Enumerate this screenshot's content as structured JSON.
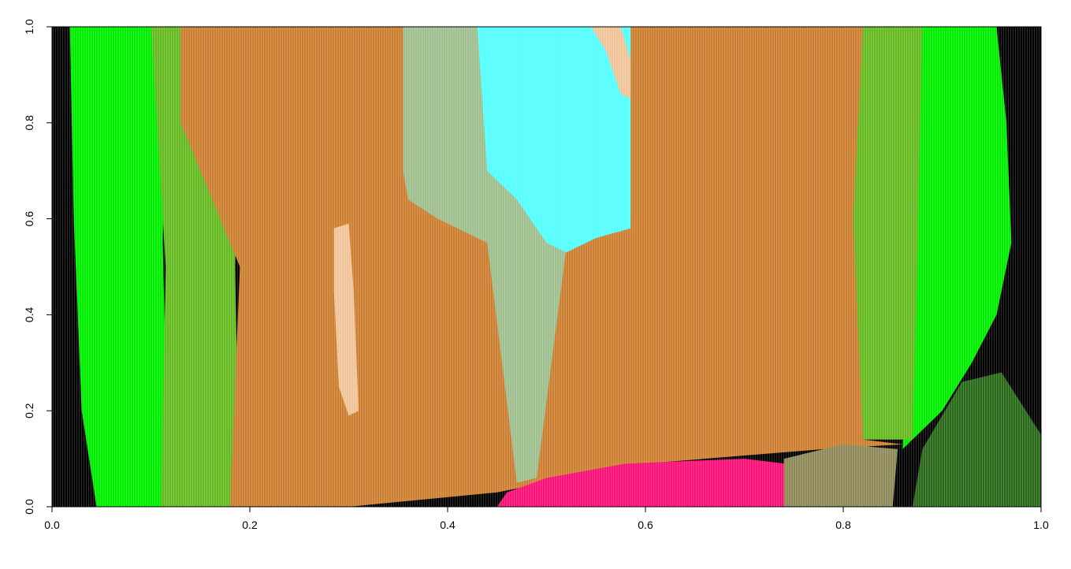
{
  "chart_data": {
    "type": "heatmap",
    "title": "",
    "xlabel": "",
    "ylabel": "",
    "xlim": [
      0.0,
      1.0
    ],
    "ylim": [
      0.0,
      1.0
    ],
    "x_ticks": [
      "0.0",
      "0.2",
      "0.4",
      "0.6",
      "0.8",
      "1.0"
    ],
    "y_ticks": [
      "0.0",
      "0.2",
      "0.4",
      "0.6",
      "0.8",
      "1.0"
    ],
    "grid": false,
    "legend": "none",
    "regions": [
      {
        "name": "background",
        "color": "#000000",
        "polygon": [
          [
            0,
            0
          ],
          [
            1,
            0
          ],
          [
            1,
            1
          ],
          [
            0,
            1
          ]
        ]
      },
      {
        "name": "bright-green-left",
        "color": "#00ee00",
        "polygon": [
          [
            0.018,
            1
          ],
          [
            0.115,
            1
          ],
          [
            0.112,
            0.55
          ],
          [
            0.118,
            0.0
          ],
          [
            0.045,
            0.0
          ],
          [
            0.03,
            0.2
          ],
          [
            0.022,
            0.6
          ]
        ]
      },
      {
        "name": "olive-green-left",
        "color": "#66bb22",
        "polygon": [
          [
            0.08,
            1
          ],
          [
            0.19,
            1
          ],
          [
            0.185,
            0.5
          ],
          [
            0.19,
            0.0
          ],
          [
            0.11,
            0.0
          ],
          [
            0.115,
            0.5
          ],
          [
            0.1,
            1
          ]
        ]
      },
      {
        "name": "bright-green-right",
        "color": "#00ee00",
        "polygon": [
          [
            0.87,
            1
          ],
          [
            0.955,
            1
          ],
          [
            0.965,
            0.8
          ],
          [
            0.97,
            0.55
          ],
          [
            0.955,
            0.4
          ],
          [
            0.93,
            0.3
          ],
          [
            0.9,
            0.2
          ],
          [
            0.86,
            0.12
          ],
          [
            0.87,
            0.5
          ]
        ]
      },
      {
        "name": "olive-green-right",
        "color": "#66bb22",
        "polygon": [
          [
            0.79,
            1
          ],
          [
            0.88,
            1
          ],
          [
            0.875,
            0.5
          ],
          [
            0.87,
            0.14
          ],
          [
            0.8,
            0.14
          ],
          [
            0.81,
            0.5
          ]
        ]
      },
      {
        "name": "orange-main",
        "color": "#cd7f32",
        "polygon": [
          [
            0.13,
            1
          ],
          [
            0.82,
            1
          ],
          [
            0.81,
            0.6
          ],
          [
            0.82,
            0.14
          ],
          [
            0.86,
            0.13
          ],
          [
            0.78,
            0.12
          ],
          [
            0.6,
            0.09
          ],
          [
            0.45,
            0.03
          ],
          [
            0.3,
            0.0
          ],
          [
            0.18,
            0.0
          ],
          [
            0.19,
            0.5
          ],
          [
            0.13,
            0.8
          ]
        ]
      },
      {
        "name": "sage-stripes",
        "color": "#9fbf8f",
        "polygon": [
          [
            0.355,
            1
          ],
          [
            0.585,
            1
          ],
          [
            0.585,
            0.6
          ],
          [
            0.55,
            0.59
          ],
          [
            0.52,
            0.54
          ],
          [
            0.49,
            0.06
          ],
          [
            0.47,
            0.05
          ],
          [
            0.44,
            0.55
          ],
          [
            0.39,
            0.6
          ],
          [
            0.36,
            0.64
          ],
          [
            0.355,
            0.7
          ]
        ]
      },
      {
        "name": "cyan",
        "color": "#55ffff",
        "polygon": [
          [
            0.43,
            1
          ],
          [
            0.585,
            1
          ],
          [
            0.585,
            0.58
          ],
          [
            0.55,
            0.56
          ],
          [
            0.52,
            0.53
          ],
          [
            0.5,
            0.55
          ],
          [
            0.47,
            0.64
          ],
          [
            0.44,
            0.7
          ]
        ]
      },
      {
        "name": "peach-top",
        "color": "#f0c49a",
        "polygon": [
          [
            0.545,
            1
          ],
          [
            0.575,
            1
          ],
          [
            0.585,
            0.93
          ],
          [
            0.585,
            0.85
          ],
          [
            0.575,
            0.86
          ],
          [
            0.56,
            0.95
          ]
        ]
      },
      {
        "name": "peach-streak",
        "color": "#f0c49a",
        "polygon": [
          [
            0.285,
            0.58
          ],
          [
            0.3,
            0.59
          ],
          [
            0.305,
            0.45
          ],
          [
            0.31,
            0.2
          ],
          [
            0.3,
            0.19
          ],
          [
            0.29,
            0.25
          ],
          [
            0.285,
            0.45
          ]
        ]
      },
      {
        "name": "magenta-pink",
        "color": "#ff1177",
        "polygon": [
          [
            0.45,
            0.0
          ],
          [
            0.8,
            0.0
          ],
          [
            0.78,
            0.08
          ],
          [
            0.7,
            0.1
          ],
          [
            0.58,
            0.09
          ],
          [
            0.5,
            0.06
          ],
          [
            0.46,
            0.03
          ]
        ]
      },
      {
        "name": "greyish-olive-bottom-right",
        "color": "#8f8a5a",
        "polygon": [
          [
            0.74,
            0.0
          ],
          [
            0.85,
            0.0
          ],
          [
            0.855,
            0.12
          ],
          [
            0.8,
            0.13
          ],
          [
            0.74,
            0.1
          ]
        ]
      },
      {
        "name": "dark-green-bottom-right",
        "color": "#2a6a1a",
        "polygon": [
          [
            0.87,
            0.0
          ],
          [
            1.0,
            0.0
          ],
          [
            1.0,
            0.15
          ],
          [
            0.96,
            0.28
          ],
          [
            0.92,
            0.26
          ],
          [
            0.88,
            0.12
          ]
        ]
      }
    ]
  }
}
